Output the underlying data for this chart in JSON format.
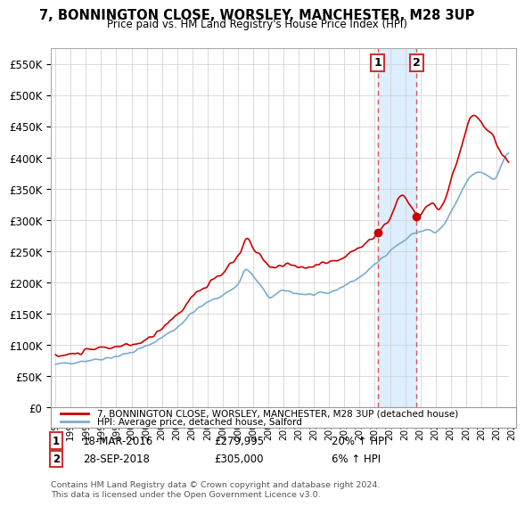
{
  "title": "7, BONNINGTON CLOSE, WORSLEY, MANCHESTER, M28 3UP",
  "subtitle": "Price paid vs. HM Land Registry's House Price Index (HPI)",
  "ylim": [
    0,
    575000
  ],
  "yticks": [
    0,
    50000,
    100000,
    150000,
    200000,
    250000,
    300000,
    350000,
    400000,
    450000,
    500000,
    550000
  ],
  "ytick_labels": [
    "£0",
    "£50K",
    "£100K",
    "£150K",
    "£200K",
    "£250K",
    "£300K",
    "£350K",
    "£400K",
    "£450K",
    "£500K",
    "£550K"
  ],
  "legend_label_red": "7, BONNINGTON CLOSE, WORSLEY, MANCHESTER, M28 3UP (detached house)",
  "legend_label_blue": "HPI: Average price, detached house, Salford",
  "event1_date": "18-MAR-2016",
  "event1_price": "£279,995",
  "event1_hpi": "20% ↑ HPI",
  "event2_date": "28-SEP-2018",
  "event2_price": "£305,000",
  "event2_hpi": "6% ↑ HPI",
  "footer": "Contains HM Land Registry data © Crown copyright and database right 2024.\nThis data is licensed under the Open Government Licence v3.0.",
  "red_color": "#cc0000",
  "blue_color": "#7aadcf",
  "shade_color": "#ddeeff",
  "event1_x": 2016.2,
  "event2_x": 2018.75,
  "xlim_left": 1994.7,
  "xlim_right": 2025.3
}
